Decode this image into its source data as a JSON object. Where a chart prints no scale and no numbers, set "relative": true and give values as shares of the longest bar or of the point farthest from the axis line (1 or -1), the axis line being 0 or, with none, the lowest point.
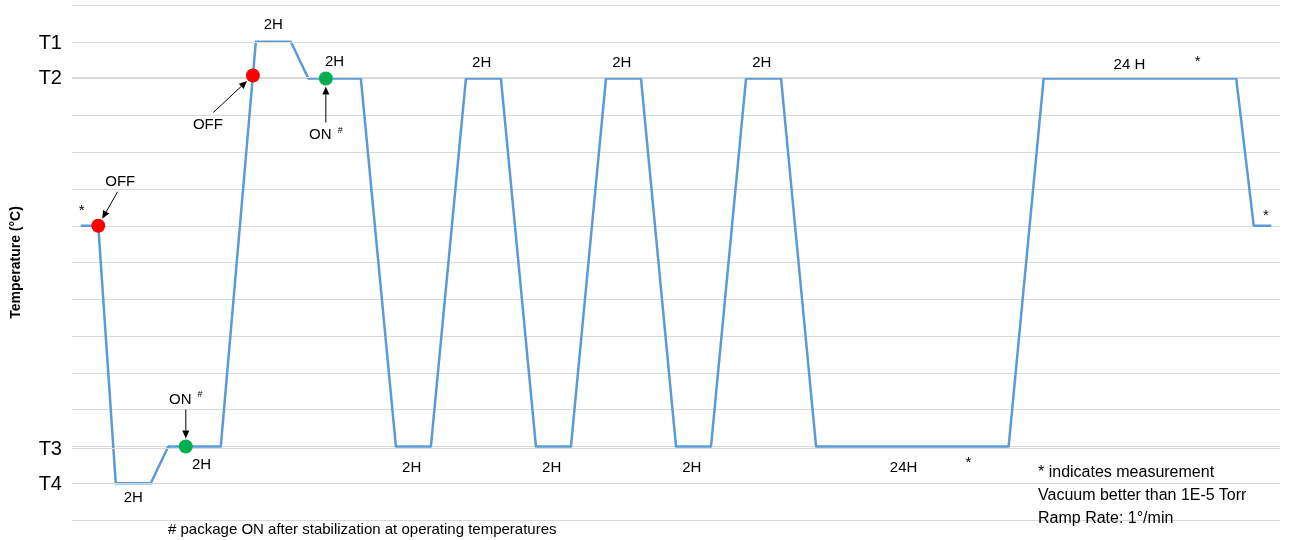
{
  "chart_data": {
    "type": "line",
    "ylabel": "Temperature (°C)",
    "relative": true,
    "categories": [
      null,
      null,
      null,
      null,
      null,
      null,
      null,
      null,
      null,
      null,
      null,
      null,
      null,
      null,
      null,
      null,
      null,
      null,
      null,
      null,
      null,
      null,
      null,
      null,
      null,
      null,
      null,
      null,
      null,
      null,
      null,
      null,
      null,
      null,
      null,
      null,
      null,
      null,
      null,
      null,
      null,
      null,
      null,
      null,
      null,
      null,
      null,
      null,
      null,
      null,
      null,
      null,
      null,
      null,
      null,
      null,
      null,
      null,
      null,
      null,
      null,
      null,
      null,
      null,
      null,
      null,
      null,
      null,
      null,
      null,
      null,
      null,
      null,
      null,
      null,
      null,
      null,
      null,
      null,
      null,
      null,
      null,
      null,
      null,
      null,
      null,
      null,
      null,
      null,
      null,
      null,
      null,
      null,
      null,
      null,
      null,
      null,
      null,
      null,
      null,
      null,
      null,
      null,
      null,
      null,
      null,
      null,
      null,
      null,
      null,
      null,
      null,
      null,
      null,
      null,
      null,
      null,
      null,
      null,
      null,
      null,
      null,
      null,
      null,
      null,
      null,
      null,
      null,
      null,
      null,
      null,
      null,
      null,
      null,
      null,
      null,
      null,
      null,
      null,
      null,
      null,
      null,
      null,
      null,
      null,
      null,
      null,
      null,
      null,
      null,
      null,
      null,
      null,
      null,
      null,
      null,
      null,
      null,
      null,
      null,
      null,
      null,
      null,
      null,
      null,
      null,
      null,
      null,
      null,
      null,
      null,
      null,
      null,
      null,
      null,
      null,
      null,
      null,
      null,
      null,
      null,
      null,
      null,
      null,
      null,
      null,
      null,
      null,
      null,
      null,
      null,
      null,
      null,
      null,
      null,
      null,
      null,
      null,
      null,
      null,
      null,
      null,
      null,
      null,
      null,
      null,
      null,
      null,
      null,
      null,
      null,
      null,
      null,
      null,
      null,
      null,
      null,
      null,
      null,
      null,
      null,
      null,
      null,
      null,
      null,
      null,
      null,
      null,
      null,
      null,
      null,
      null,
      null,
      null,
      null,
      null,
      null,
      null,
      null,
      null,
      null,
      null,
      null,
      null,
      null,
      null,
      null,
      null,
      null,
      null,
      null,
      null,
      null,
      null,
      null,
      null,
      null,
      null,
      null,
      null,
      null,
      null,
      null,
      null,
      null,
      null,
      null,
      null,
      null,
      null,
      null,
      null,
      null,
      null,
      null,
      null,
      null,
      null,
      null,
      null,
      null,
      null,
      null,
      null,
      null,
      null,
      null,
      null,
      null,
      null,
      null,
      null,
      null,
      null,
      null,
      null,
      null,
      null,
      null,
      null,
      null,
      null,
      null,
      null,
      null,
      null,
      null,
      null,
      null,
      null,
      null,
      null,
      null,
      null,
      null,
      null,
      null,
      null,
      null,
      null,
      null,
      null,
      null,
      null,
      null,
      null,
      null,
      null,
      null,
      null,
      null,
      null,
      null,
      null,
      null,
      null,
      null,
      null,
      null,
      null,
      null,
      null,
      null,
      null,
      null,
      null,
      null,
      null,
      null,
      null,
      null,
      null,
      null,
      null,
      null,
      null,
      null,
      null,
      null,
      null,
      null,
      null,
      null,
      null,
      null,
      null,
      null,
      null,
      null,
      null,
      null,
      null,
      null,
      null,
      null,
      null,
      null,
      null,
      null,
      null,
      null,
      null,
      null,
      null,
      null,
      null,
      null,
      null,
      null,
      null,
      null,
      null,
      null,
      null,
      null,
      null,
      null,
      null,
      null,
      null,
      null,
      null,
      null,
      null,
      null,
      null,
      null,
      null,
      null
    ],
    "grid": "y",
    "ref_lines": [
      {
        "axis": "y",
        "value": 1,
        "label": "T1"
      },
      {
        "axis": "y",
        "value": 0.9167,
        "label": "T2"
      },
      {
        "axis": "y",
        "value": 0.0833,
        "label": "T3"
      },
      {
        "axis": "y",
        "value": 0,
        "label": "T4"
      }
    ],
    "series": [
      {
        "color": "#5b9bd5",
        "marker": "none",
        "values": [
          0.5833,
          null,
          null,
          null,
          null,
          null,
          0.5833,
          null,
          null,
          null,
          null,
          null,
          0,
          null,
          null,
          null,
          null,
          null,
          null,
          null,
          null,
          null,
          null,
          null,
          0,
          null,
          null,
          null,
          null,
          null,
          0.0833,
          null,
          null,
          null,
          null,
          null,
          null,
          null,
          null,
          null,
          null,
          null,
          null,
          null,
          null,
          null,
          null,
          null,
          0.0833,
          null,
          null,
          null,
          null,
          null,
          null,
          null,
          null,
          null,
          null,
          0.9236,
          1,
          null,
          null,
          null,
          null,
          null,
          null,
          null,
          null,
          null,
          null,
          null,
          1,
          null,
          null,
          null,
          null,
          null,
          0.9167,
          null,
          null,
          null,
          null,
          null,
          null,
          null,
          null,
          null,
          null,
          null,
          null,
          null,
          null,
          null,
          null,
          null,
          0.9167,
          null,
          null,
          null,
          null,
          null,
          null,
          null,
          null,
          null,
          null,
          null,
          0.0833,
          null,
          null,
          null,
          null,
          null,
          null,
          null,
          null,
          null,
          null,
          null,
          0.0833,
          null,
          null,
          null,
          null,
          null,
          null,
          null,
          null,
          null,
          null,
          null,
          0.9167,
          null,
          null,
          null,
          null,
          null,
          null,
          null,
          null,
          null,
          null,
          null,
          0.9167,
          null,
          null,
          null,
          null,
          null,
          null,
          null,
          null,
          null,
          null,
          null,
          0.0833,
          null,
          null,
          null,
          null,
          null,
          null,
          null,
          null,
          null,
          null,
          null,
          0.0833,
          null,
          null,
          null,
          null,
          null,
          null,
          null,
          null,
          null,
          null,
          null,
          0.9167,
          null,
          null,
          null,
          null,
          null,
          null,
          null,
          null,
          null,
          null,
          null,
          0.9167,
          null,
          null,
          null,
          null,
          null,
          null,
          null,
          null,
          null,
          null,
          null,
          0.0833,
          null,
          null,
          null,
          null,
          null,
          null,
          null,
          null,
          null,
          null,
          null,
          0.0833,
          null,
          null,
          null,
          null,
          null,
          null,
          null,
          null,
          null,
          null,
          null,
          0.9167,
          null,
          null,
          null,
          null,
          null,
          null,
          null,
          null,
          null,
          null,
          null,
          0.9167,
          null,
          null,
          null,
          null,
          null,
          null,
          null,
          null,
          null,
          null,
          null,
          0.0833,
          null,
          null,
          null,
          null,
          null,
          null,
          null,
          null,
          null,
          null,
          null,
          null,
          null,
          null,
          null,
          null,
          null,
          null,
          null,
          null,
          null,
          null,
          null,
          null,
          null,
          null,
          null,
          null,
          null,
          null,
          null,
          null,
          null,
          null,
          null,
          null,
          null,
          null,
          null,
          null,
          null,
          null,
          null,
          null,
          null,
          null,
          null,
          null,
          null,
          null,
          null,
          null,
          null,
          null,
          null,
          null,
          null,
          null,
          null,
          null,
          null,
          null,
          null,
          null,
          null,
          0.0833,
          null,
          null,
          null,
          null,
          null,
          null,
          null,
          null,
          null,
          null,
          null,
          0.9167,
          null,
          null,
          null,
          null,
          null,
          null,
          null,
          null,
          null,
          null,
          null,
          null,
          null,
          null,
          null,
          null,
          null,
          null,
          null,
          null,
          null,
          null,
          null,
          null,
          null,
          null,
          null,
          null,
          null,
          null,
          null,
          null,
          null,
          null,
          null,
          null,
          null,
          null,
          null,
          null,
          null,
          null,
          null,
          null,
          null,
          null,
          null,
          null,
          null,
          null,
          null,
          null,
          null,
          null,
          null,
          null,
          null,
          null,
          null,
          null,
          null,
          null,
          null,
          null,
          null,
          0.9167,
          null,
          null,
          null,
          null,
          null,
          0.5833,
          null,
          null,
          null,
          null,
          null,
          0.5833
        ]
      }
    ],
    "annotations": [
      "*",
      "OFF",
      "2H",
      "ON $^{#}$",
      "2H",
      "OFF",
      "2H",
      "2H",
      "ON $^{#}$",
      "2H",
      "2H",
      "2H",
      "2H",
      "2H",
      "2H",
      "24H",
      "*",
      "24 H",
      "*",
      "*",
      "# package ON after stabilization at operating temperatures",
      "* indicates measurement",
      "Vacuum better than 1E-5 Torr",
      "Ramp Rate: 1°/min"
    ]
  }
}
